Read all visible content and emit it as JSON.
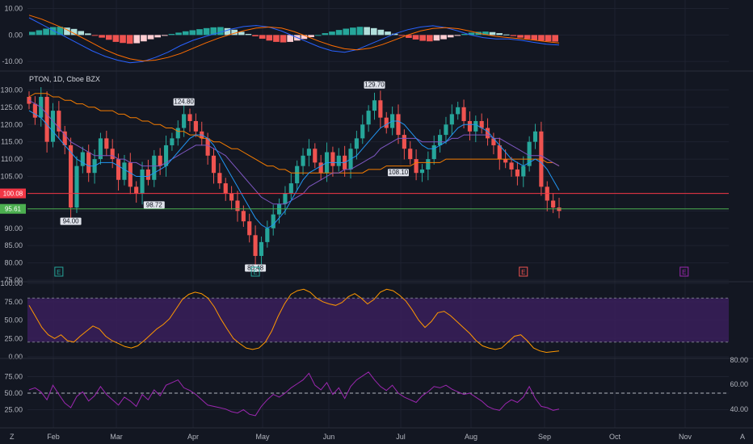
{
  "symbol_header": "PTON, 1D, Cboe BZX",
  "colors": {
    "background": "#131722",
    "grid": "#1e2230",
    "up": "#26a69a",
    "down": "#ef5350",
    "macd_line": "#2962ff",
    "signal_line": "#ff6d00",
    "ma_fast": "#2196f3",
    "ma_mid": "#7e57c2",
    "ma_slow": "#f57c00",
    "rsi_band": "#3a1f5a",
    "stoch_line": "#ff9800",
    "rsi_line": "#9c27b0",
    "price_red": "#f23645",
    "price_green": "#4caf50",
    "earnings_green": "#26a69a",
    "earnings_red": "#ef5350",
    "earnings_purple": "#9c27b0"
  },
  "chart_data": [
    {
      "type": "bar",
      "name_ref": "macd",
      "y_ticks": [
        "10.00",
        "0.00",
        "-10.00"
      ],
      "ylim": [
        -13,
        12
      ],
      "histogram": [
        1.2,
        1.8,
        2.4,
        3.0,
        3.1,
        2.8,
        2.3,
        1.5,
        0.6,
        -0.2,
        -1.0,
        -1.8,
        -2.6,
        -3.0,
        -3.3,
        -3.1,
        -2.4,
        -1.6,
        -0.9,
        -0.2,
        0.4,
        0.9,
        1.4,
        1.8,
        2.2,
        2.6,
        2.9,
        3.0,
        2.6,
        2.0,
        1.2,
        0.4,
        -0.5,
        -1.4,
        -2.1,
        -2.6,
        -2.8,
        -2.6,
        -2.1,
        -1.5,
        -0.8,
        0.0,
        0.7,
        1.3,
        1.9,
        2.4,
        2.8,
        3.1,
        3.0,
        2.6,
        2.0,
        1.3,
        0.5,
        -0.3,
        -1.1,
        -1.7,
        -2.2,
        -2.4,
        -2.1,
        -1.6,
        -0.9,
        -0.2,
        0.4,
        0.9,
        1.2,
        1.3,
        1.1,
        0.7,
        0.2,
        -0.4,
        -1.0,
        -1.5,
        -1.9,
        -2.2,
        -2.4,
        -2.5
      ],
      "macd_line": [
        6.5,
        4.0,
        1.5,
        -1.0,
        -3.5,
        -6.0,
        -8.0,
        -9.5,
        -10.5,
        -10.0,
        -8.5,
        -6.5,
        -4.0,
        -2.0,
        -0.5,
        0.8,
        2.2,
        3.2,
        3.6,
        3.0,
        1.5,
        -0.5,
        -2.5,
        -4.5,
        -6.0,
        -6.5,
        -5.5,
        -3.5,
        -1.5,
        0.5,
        2.0,
        3.0,
        3.5,
        2.8,
        1.5,
        0.0,
        -1.0,
        -1.5,
        -1.5,
        -2.0,
        -2.8,
        -3.5,
        -3.8
      ],
      "signal_line": [
        7.5,
        6.0,
        4.0,
        2.0,
        -0.5,
        -3.0,
        -5.5,
        -7.5,
        -9.0,
        -9.8,
        -9.5,
        -8.5,
        -7.0,
        -5.0,
        -3.0,
        -1.2,
        0.3,
        1.6,
        2.6,
        3.0,
        2.6,
        1.3,
        -0.5,
        -2.4,
        -4.0,
        -5.2,
        -5.6,
        -5.0,
        -3.6,
        -1.8,
        0.0,
        1.5,
        2.5,
        2.8,
        2.4,
        1.4,
        0.3,
        -0.5,
        -1.0,
        -1.4,
        -1.9,
        -2.5,
        -3.0
      ]
    },
    {
      "type": "bar",
      "name_ref": "price",
      "y_ticks": [
        "130.00",
        "125.00",
        "120.00",
        "115.00",
        "110.00",
        "105.00",
        "100.00",
        "95.00",
        "90.00",
        "85.00",
        "80.00",
        "75.00"
      ],
      "ylim": [
        75,
        135
      ],
      "last_price_red": "100.08",
      "last_price_green": "95.61",
      "close": [
        126,
        122,
        128,
        115,
        124,
        118,
        114,
        96,
        108,
        112,
        106,
        110,
        116,
        113,
        110,
        104,
        109,
        102,
        100,
        107,
        104,
        111,
        108,
        114,
        116,
        119,
        123,
        121,
        118,
        116,
        111,
        106,
        103,
        100,
        98,
        95,
        92,
        88,
        82,
        86,
        90,
        94,
        97,
        100,
        103,
        108,
        111,
        113,
        109,
        106,
        112,
        108,
        111,
        107,
        113,
        116,
        120,
        124,
        127,
        122,
        119,
        123,
        117,
        113,
        110,
        106,
        107,
        110,
        114,
        117,
        120,
        123,
        125,
        121,
        118,
        121,
        119,
        116,
        114,
        110,
        109,
        107,
        105,
        108,
        115,
        118,
        102,
        98,
        96,
        95
      ],
      "ma_fast": [
        124,
        123,
        122,
        120,
        118,
        116,
        114,
        112,
        110,
        109,
        108,
        108,
        109,
        109,
        109,
        108,
        107,
        106,
        105,
        105,
        105,
        106,
        107,
        108,
        110,
        112,
        114,
        116,
        117,
        117,
        116,
        114,
        111,
        108,
        105,
        102,
        99,
        96,
        93,
        91,
        90,
        91,
        93,
        95,
        98,
        101,
        104,
        106,
        107,
        108,
        109,
        109,
        109,
        109,
        110,
        111,
        113,
        115,
        117,
        119,
        120,
        121,
        121,
        120,
        118,
        116,
        114,
        113,
        113,
        114,
        115,
        117,
        119,
        120,
        120,
        120,
        119,
        118,
        116,
        114,
        112,
        110,
        109,
        108,
        109,
        110,
        109,
        107,
        104,
        101
      ],
      "ma_mid": [
        127,
        126,
        125,
        123,
        121,
        119,
        117,
        115,
        114,
        113,
        112,
        111,
        111,
        111,
        111,
        110,
        110,
        109,
        109,
        108,
        108,
        108,
        108,
        109,
        110,
        111,
        112,
        113,
        114,
        114,
        114,
        113,
        112,
        111,
        109,
        107,
        105,
        103,
        101,
        99,
        98,
        97,
        97,
        97,
        98,
        99,
        100,
        102,
        103,
        104,
        105,
        106,
        106,
        107,
        107,
        108,
        109,
        110,
        111,
        113,
        114,
        115,
        116,
        116,
        116,
        116,
        115,
        115,
        115,
        115,
        115,
        116,
        116,
        117,
        117,
        117,
        117,
        117,
        116,
        116,
        115,
        114,
        113,
        112,
        111,
        111,
        111,
        110,
        109,
        108
      ],
      "ma_slow": [
        128,
        129,
        129,
        129,
        128,
        128,
        127,
        127,
        126,
        126,
        125,
        125,
        124,
        124,
        124,
        123,
        123,
        122,
        122,
        121,
        121,
        120,
        120,
        119,
        119,
        118,
        118,
        117,
        117,
        116,
        116,
        115,
        115,
        114,
        113,
        113,
        112,
        111,
        110,
        109,
        108,
        108,
        107,
        107,
        106,
        106,
        106,
        106,
        106,
        106,
        106,
        106,
        106,
        106,
        106,
        106,
        106,
        107,
        107,
        107,
        108,
        108,
        108,
        108,
        108,
        109,
        109,
        109,
        109,
        109,
        110,
        110,
        110,
        110,
        110,
        110,
        110,
        110,
        110,
        110,
        110,
        110,
        110,
        110,
        110,
        110,
        110,
        109,
        109,
        108
      ],
      "callouts": [
        {
          "label": "94.00",
          "index": 7,
          "value": 94.0
        },
        {
          "label": "124.80",
          "index": 26,
          "value": 124.8
        },
        {
          "label": "98.72",
          "index": 21,
          "value": 98.72
        },
        {
          "label": "80.48",
          "index": 38,
          "value": 80.48
        },
        {
          "label": "129.70",
          "index": 58,
          "value": 129.7
        },
        {
          "label": "108.10",
          "index": 62,
          "value": 108.1
        }
      ],
      "earnings_markers": [
        {
          "label": "E",
          "color": "green",
          "index": 5
        },
        {
          "label": "E",
          "color": "green",
          "index": 38
        },
        {
          "label": "E",
          "color": "red",
          "index": 83
        },
        {
          "label": "E",
          "color": "purple",
          "index": 110
        }
      ]
    },
    {
      "type": "line",
      "name_ref": "stochastic",
      "y_ticks": [
        "100.00",
        "75.00",
        "50.00",
        "25.00",
        "0.00"
      ],
      "ylim": [
        0,
        100
      ],
      "band": [
        20,
        80
      ],
      "values": [
        70,
        55,
        40,
        30,
        25,
        30,
        22,
        20,
        28,
        35,
        42,
        38,
        28,
        22,
        18,
        14,
        12,
        15,
        22,
        30,
        38,
        44,
        52,
        65,
        78,
        85,
        88,
        86,
        80,
        68,
        52,
        38,
        25,
        18,
        12,
        10,
        12,
        20,
        35,
        55,
        72,
        85,
        90,
        92,
        88,
        80,
        75,
        72,
        70,
        74,
        82,
        86,
        80,
        72,
        78,
        88,
        92,
        90,
        84,
        76,
        64,
        50,
        40,
        48,
        60,
        62,
        56,
        48,
        40,
        32,
        22,
        15,
        12,
        10,
        12,
        20,
        28,
        30,
        22,
        12,
        8,
        6,
        7,
        8
      ]
    },
    {
      "type": "line",
      "name_ref": "rsi",
      "y_ticks": [
        "75.00",
        "50.00",
        "25.00"
      ],
      "right_ticks": [
        "80.00",
        "60.00",
        "40.00"
      ],
      "ylim": [
        0,
        100
      ],
      "midline": 50,
      "values": [
        55,
        58,
        52,
        40,
        62,
        48,
        35,
        28,
        45,
        52,
        38,
        46,
        60,
        48,
        40,
        32,
        44,
        38,
        30,
        48,
        40,
        55,
        46,
        62,
        66,
        70,
        58,
        54,
        48,
        40,
        32,
        30,
        28,
        26,
        22,
        20,
        25,
        18,
        16,
        30,
        40,
        48,
        44,
        50,
        58,
        64,
        70,
        80,
        62,
        55,
        66,
        48,
        58,
        42,
        60,
        70,
        76,
        82,
        70,
        60,
        54,
        62,
        50,
        44,
        40,
        36,
        46,
        52,
        60,
        58,
        62,
        56,
        52,
        48,
        50,
        44,
        38,
        30,
        26,
        24,
        34,
        40,
        36,
        44,
        60,
        42,
        30,
        28,
        24,
        26
      ]
    }
  ],
  "x_axis": {
    "months": [
      "Feb",
      "Mar",
      "Apr",
      "May",
      "Jun",
      "Jul",
      "Aug",
      "Sep",
      "Oct",
      "Nov"
    ]
  },
  "corner_labels": {
    "left": "Z",
    "right": "A"
  }
}
